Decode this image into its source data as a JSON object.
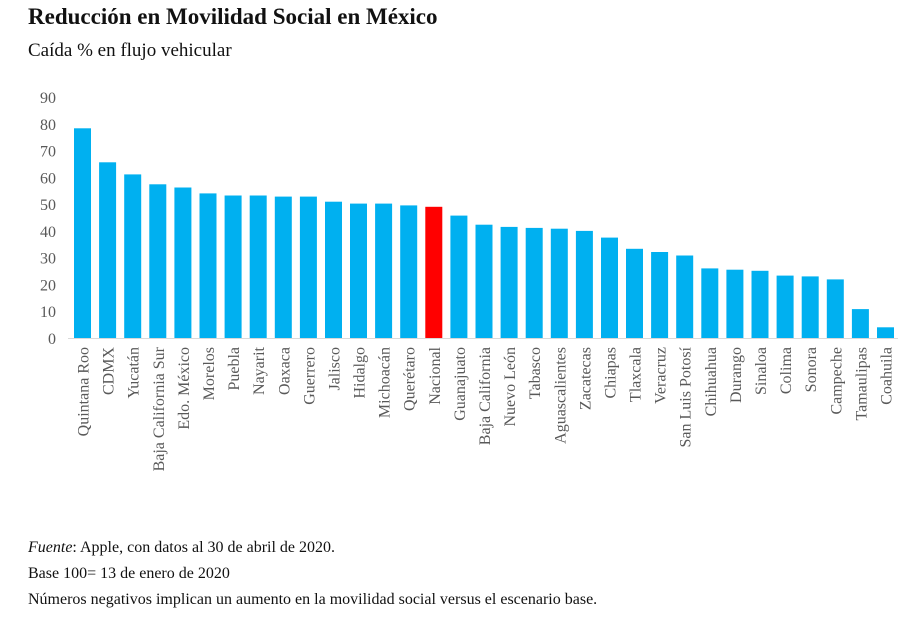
{
  "chart_data": {
    "type": "bar",
    "title": "Reducción en Movilidad Social en México",
    "subtitle": "Caída % en flujo vehicular",
    "xlabel": "",
    "ylabel": "",
    "ylim": [
      0,
      90
    ],
    "yticks": [
      "0",
      "10",
      "20",
      "30",
      "40",
      "50",
      "60",
      "70",
      "80",
      "90"
    ],
    "grid": false,
    "categories": [
      "Quintana Roo",
      "CDMX",
      "Yucatán",
      "Baja California Sur",
      "Edo. México",
      "Morelos",
      "Puebla",
      "Nayarit",
      "Oaxaca",
      "Guerrero",
      "Jalisco",
      "Hidalgo",
      "Michoacán",
      "Querétaro",
      "Nacional",
      "Guanajuato",
      "Baja California",
      "Nuevo León",
      "Tabasco",
      "Aguascalientes",
      "Zacatecas",
      "Chiapas",
      "Tlaxcala",
      "Veracruz",
      "San Luis Potosí",
      "Chihuahua",
      "Durango",
      "Sinaloa",
      "Colima",
      "Sonora",
      "Campeche",
      "Tamaulipas",
      "Coahuila"
    ],
    "values": [
      78.3,
      65.6,
      61.1,
      57.4,
      56.2,
      54.0,
      53.2,
      53.2,
      52.8,
      52.8,
      50.9,
      50.2,
      50.2,
      49.5,
      49.0,
      45.7,
      42.3,
      41.5,
      41.1,
      40.8,
      40.0,
      37.5,
      33.3,
      32.1,
      30.8,
      26.0,
      25.5,
      25.1,
      23.3,
      23.0,
      21.9,
      10.8,
      4.0
    ],
    "colors": {
      "default": "#00b0f0",
      "highlight": "#ff0000",
      "highlight_category": "Nacional"
    }
  },
  "notes": {
    "source_label": "Fuente",
    "source_text": ": Apple, con datos al 30 de abril de 2020.",
    "base_text": "Base 100= 13 de enero de 2020",
    "negative_text": "Números negativos implican un aumento en la movilidad social versus el escenario base."
  }
}
